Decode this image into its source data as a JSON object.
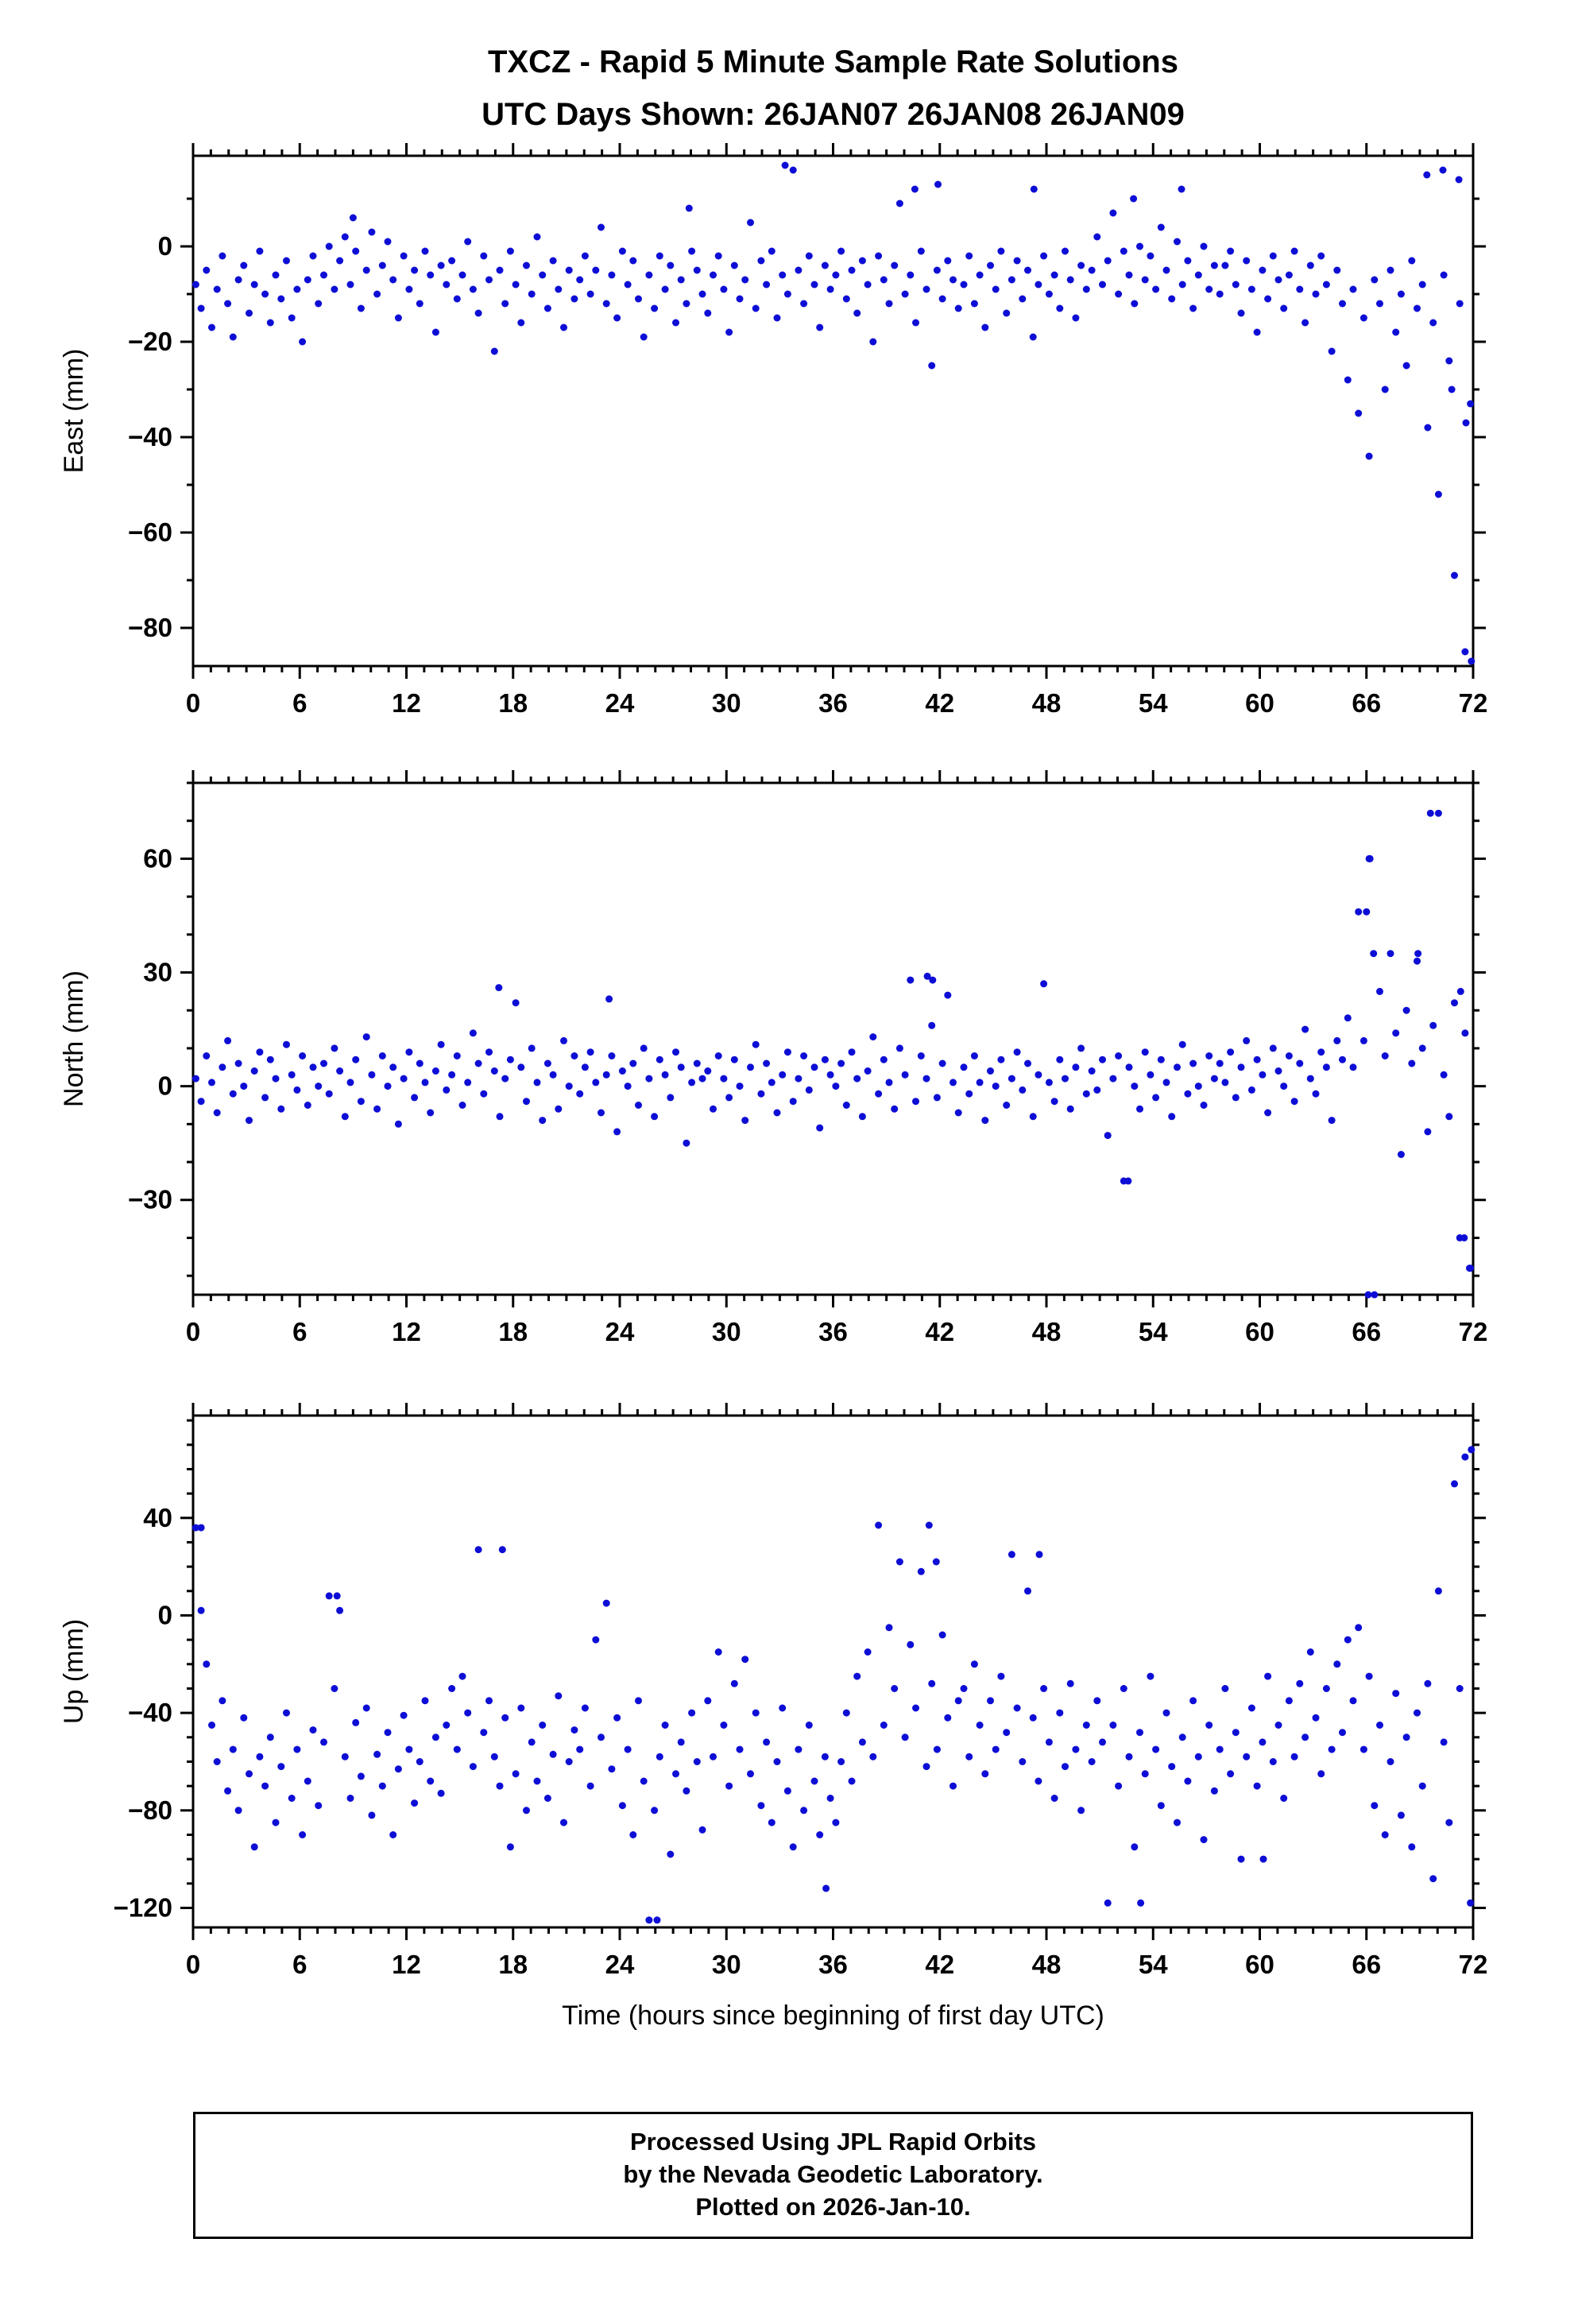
{
  "title": {
    "line1": "TXCZ - Rapid 5 Minute Sample Rate Solutions",
    "line2": "UTC Days Shown:  26JAN07 26JAN08 26JAN09"
  },
  "caption": {
    "line1": "Processed Using JPL Rapid Orbits",
    "line2": "by the Nevada Geodetic Laboratory.",
    "line3": "Plotted on 2026-Jan-10."
  },
  "xlabel": "Time (hours since beginning of first day UTC)",
  "colors": {
    "points": "#0d0dd6",
    "frame": "#000000"
  },
  "chart_data": [
    {
      "type": "scatter",
      "name": "East",
      "ylabel": "East (mm)",
      "xlim": [
        0,
        72
      ],
      "ylim": [
        -88,
        19
      ],
      "xticks": [
        0,
        6,
        12,
        18,
        24,
        30,
        36,
        42,
        48,
        54,
        60,
        66,
        72
      ],
      "xtick_minor": 1,
      "yticks": [
        0,
        -20,
        -40,
        -60,
        -80
      ],
      "ytick_minor": 10,
      "x_start": 0.15,
      "x_step": 0.3,
      "y": [
        -8,
        -13,
        -5,
        -17,
        -9,
        -2,
        -12,
        -19,
        -7,
        -4,
        -14,
        -8,
        -1,
        -10,
        -16,
        -6,
        -11,
        -3,
        -15,
        -9,
        -20,
        -7,
        -2,
        -12,
        -6,
        0,
        -9,
        -3,
        2,
        -8,
        -1,
        -13,
        -5,
        3,
        -10,
        -4,
        1,
        -7,
        -15,
        -2,
        -9,
        -5,
        -12,
        -1,
        -6,
        -18,
        -4,
        -8,
        -3,
        -11,
        -6,
        1,
        -9,
        -14,
        -2,
        -7,
        -22,
        -5,
        -12,
        -1,
        -8,
        -16,
        -4,
        -10,
        2,
        -6,
        -13,
        -3,
        -9,
        -17,
        -5,
        -11,
        -7,
        -2,
        -10,
        -5,
        4,
        -12,
        -6,
        -15,
        -1,
        -8,
        -3,
        -11,
        -19,
        -6,
        -13,
        -2,
        -9,
        -4,
        -16,
        -7,
        -12,
        -1,
        -5,
        -10,
        -14,
        -6,
        -2,
        -9,
        -18,
        -4,
        -11,
        -7,
        5,
        -13,
        -3,
        -8,
        -1,
        -15,
        -6,
        -10,
        16,
        -5,
        -12,
        -2,
        -8,
        -17,
        -4,
        -9,
        -6,
        -1,
        -11,
        -5,
        -14,
        -3,
        -8,
        -20,
        -2,
        -7,
        -12,
        -4,
        9,
        -10,
        -6,
        -16,
        -1,
        -9,
        -25,
        -5,
        -11,
        -3,
        -7,
        -13,
        -8,
        -2,
        -12,
        -6,
        -17,
        -4,
        -9,
        -1,
        -14,
        -7,
        -3,
        -11,
        -5,
        -19,
        -8,
        -2,
        -10,
        -6,
        -13,
        -1,
        -7,
        -15,
        -4,
        -9,
        -5,
        2,
        -8,
        -3,
        7,
        -10,
        -1,
        -6,
        -12,
        0,
        -7,
        -2,
        -9,
        4,
        -5,
        -11,
        1,
        -8,
        -3,
        -13,
        -6,
        0,
        -9,
        -4,
        -10,
        -4,
        -1,
        -8,
        -14,
        -3,
        -9,
        -18,
        -5,
        -11,
        -2,
        -7,
        -13,
        -6,
        -1,
        -9,
        -16,
        -4,
        -10,
        -2,
        -8,
        -22,
        -5,
        -12,
        -28,
        -9,
        -35,
        -15,
        -44,
        -7,
        -12,
        -30,
        -5,
        -18,
        -10,
        -25,
        -3,
        -13,
        -8,
        -38,
        -16,
        -52,
        -6,
        -24,
        -69,
        -12,
        -85,
        -33
      ],
      "extra_points": [
        [
          33.3,
          17
        ],
        [
          40.6,
          12
        ],
        [
          41.9,
          13
        ],
        [
          47.3,
          12
        ],
        [
          52.9,
          10
        ],
        [
          55.6,
          12
        ],
        [
          69.4,
          15
        ],
        [
          70.3,
          16
        ],
        [
          71.2,
          14
        ],
        [
          27.9,
          8
        ],
        [
          9.0,
          6
        ],
        [
          70.8,
          -30
        ],
        [
          71.6,
          -37
        ],
        [
          71.9,
          -87
        ]
      ]
    },
    {
      "type": "scatter",
      "name": "North",
      "ylabel": "North (mm)",
      "xlim": [
        0,
        72
      ],
      "ylim": [
        -55,
        80
      ],
      "xticks": [
        0,
        6,
        12,
        18,
        24,
        30,
        36,
        42,
        48,
        54,
        60,
        66,
        72
      ],
      "xtick_minor": 1,
      "yticks": [
        60,
        30,
        0,
        -30
      ],
      "ytick_minor": 10,
      "x_start": 0.15,
      "x_step": 0.3,
      "y": [
        2,
        -4,
        8,
        1,
        -7,
        5,
        12,
        -2,
        6,
        0,
        -9,
        4,
        9,
        -3,
        7,
        2,
        -6,
        11,
        3,
        -1,
        8,
        -5,
        5,
        0,
        6,
        -2,
        10,
        4,
        -8,
        1,
        7,
        -4,
        13,
        3,
        -6,
        8,
        0,
        5,
        -10,
        2,
        9,
        -3,
        6,
        1,
        -7,
        4,
        11,
        -1,
        3,
        8,
        -5,
        1,
        14,
        6,
        -2,
        9,
        4,
        -8,
        2,
        7,
        22,
        5,
        -4,
        10,
        1,
        -9,
        6,
        3,
        -6,
        12,
        0,
        8,
        -2,
        5,
        9,
        1,
        -7,
        3,
        8,
        -12,
        4,
        0,
        6,
        -5,
        10,
        2,
        -8,
        7,
        3,
        -3,
        9,
        5,
        -15,
        1,
        6,
        2,
        4,
        -6,
        8,
        2,
        -3,
        7,
        0,
        -9,
        5,
        11,
        -2,
        6,
        1,
        -7,
        3,
        9,
        -4,
        2,
        8,
        -1,
        5,
        -11,
        7,
        3,
        0,
        6,
        -5,
        9,
        2,
        -8,
        4,
        13,
        -2,
        7,
        1,
        -6,
        10,
        3,
        28,
        -4,
        8,
        2,
        16,
        -3,
        6,
        24,
        1,
        -7,
        5,
        -2,
        8,
        1,
        -9,
        4,
        0,
        7,
        -5,
        2,
        9,
        -1,
        6,
        -8,
        3,
        27,
        1,
        -4,
        7,
        2,
        -6,
        5,
        10,
        -2,
        4,
        -1,
        7,
        -13,
        2,
        8,
        -25,
        5,
        0,
        -6,
        9,
        3,
        -3,
        7,
        1,
        -8,
        5,
        11,
        -2,
        6,
        0,
        -5,
        8,
        2,
        6,
        1,
        9,
        -3,
        5,
        12,
        -1,
        7,
        3,
        -7,
        10,
        4,
        0,
        8,
        -4,
        6,
        15,
        2,
        -2,
        9,
        5,
        -9,
        12,
        7,
        18,
        5,
        46,
        12,
        60,
        -55,
        25,
        8,
        35,
        14,
        -18,
        20,
        6,
        33,
        10,
        -12,
        16,
        72,
        3,
        -8,
        22,
        -40,
        14,
        -48
      ],
      "extra_points": [
        [
          69.6,
          72
        ],
        [
          66.2,
          60
        ],
        [
          66.0,
          46
        ],
        [
          66.4,
          35
        ],
        [
          41.3,
          29
        ],
        [
          41.6,
          28
        ],
        [
          52.6,
          -25
        ],
        [
          66.1,
          -55
        ],
        [
          71.5,
          -40
        ],
        [
          71.8,
          -48
        ],
        [
          17.2,
          26
        ],
        [
          23.4,
          23
        ],
        [
          71.3,
          25
        ],
        [
          68.9,
          35
        ]
      ]
    },
    {
      "type": "scatter",
      "name": "Up",
      "ylabel": "Up (mm)",
      "xlim": [
        0,
        72
      ],
      "ylim": [
        -128,
        82
      ],
      "xticks": [
        0,
        6,
        12,
        18,
        24,
        30,
        36,
        42,
        48,
        54,
        60,
        66,
        72
      ],
      "xtick_minor": 1,
      "yticks": [
        40,
        0,
        -40,
        -80,
        -120
      ],
      "ytick_minor": 10,
      "x_start": 0.15,
      "x_step": 0.3,
      "y": [
        36,
        2,
        -20,
        -45,
        -60,
        -35,
        -72,
        -55,
        -80,
        -42,
        -65,
        -95,
        -58,
        -70,
        -50,
        -85,
        -62,
        -40,
        -75,
        -55,
        -90,
        -68,
        -47,
        -78,
        -52,
        8,
        -30,
        2,
        -58,
        -75,
        -44,
        -66,
        -38,
        -82,
        -57,
        -70,
        -48,
        -90,
        -63,
        -41,
        -55,
        -77,
        -60,
        -35,
        -68,
        -50,
        -73,
        -45,
        -30,
        -55,
        -25,
        -40,
        -62,
        27,
        -48,
        -35,
        -58,
        -70,
        -42,
        -95,
        -65,
        -38,
        -80,
        -52,
        -68,
        -45,
        -75,
        -57,
        -33,
        -85,
        -60,
        -47,
        -55,
        -38,
        -70,
        -10,
        -50,
        5,
        -63,
        -42,
        -78,
        -55,
        -90,
        -35,
        -68,
        -125,
        -80,
        -58,
        -45,
        -98,
        -65,
        -52,
        -72,
        -40,
        -60,
        -88,
        -35,
        -58,
        -15,
        -45,
        -70,
        -28,
        -55,
        -18,
        -65,
        -40,
        -78,
        -52,
        -85,
        -60,
        -38,
        -72,
        -95,
        -55,
        -80,
        -45,
        -68,
        -90,
        -58,
        -75,
        -85,
        -60,
        -40,
        -68,
        -25,
        -52,
        -15,
        -58,
        37,
        -45,
        -5,
        -30,
        22,
        -50,
        -12,
        -38,
        18,
        -62,
        -28,
        -55,
        -8,
        -42,
        -70,
        -35,
        -30,
        -58,
        -20,
        -45,
        -65,
        -35,
        -55,
        -25,
        -48,
        25,
        -38,
        -60,
        10,
        -42,
        -68,
        -30,
        -52,
        -75,
        -40,
        -62,
        -28,
        -55,
        -80,
        -45,
        -60,
        -35,
        -52,
        -118,
        -45,
        -70,
        -30,
        -58,
        -95,
        -48,
        -65,
        -25,
        -55,
        -78,
        -40,
        -62,
        -85,
        -50,
        -68,
        -35,
        -58,
        -92,
        -45,
        -72,
        -55,
        -30,
        -65,
        -48,
        -100,
        -58,
        -38,
        -70,
        -52,
        -25,
        -60,
        -45,
        -75,
        -35,
        -58,
        -28,
        -50,
        -15,
        -42,
        -65,
        -30,
        -55,
        -20,
        -48,
        -10,
        -35,
        -5,
        -55,
        -25,
        -78,
        -45,
        -90,
        -60,
        -32,
        -82,
        -50,
        -95,
        -40,
        -70,
        -28,
        -108,
        10,
        -52,
        -85,
        54,
        -30,
        65,
        -118
      ],
      "extra_points": [
        [
          0.45,
          36
        ],
        [
          8.1,
          8
        ],
        [
          17.4,
          27
        ],
        [
          26.1,
          -125
        ],
        [
          41.4,
          37
        ],
        [
          41.8,
          22
        ],
        [
          47.6,
          25
        ],
        [
          53.3,
          -118
        ],
        [
          60.2,
          -100
        ],
        [
          35.6,
          -112
        ],
        [
          71.9,
          68
        ]
      ]
    }
  ]
}
